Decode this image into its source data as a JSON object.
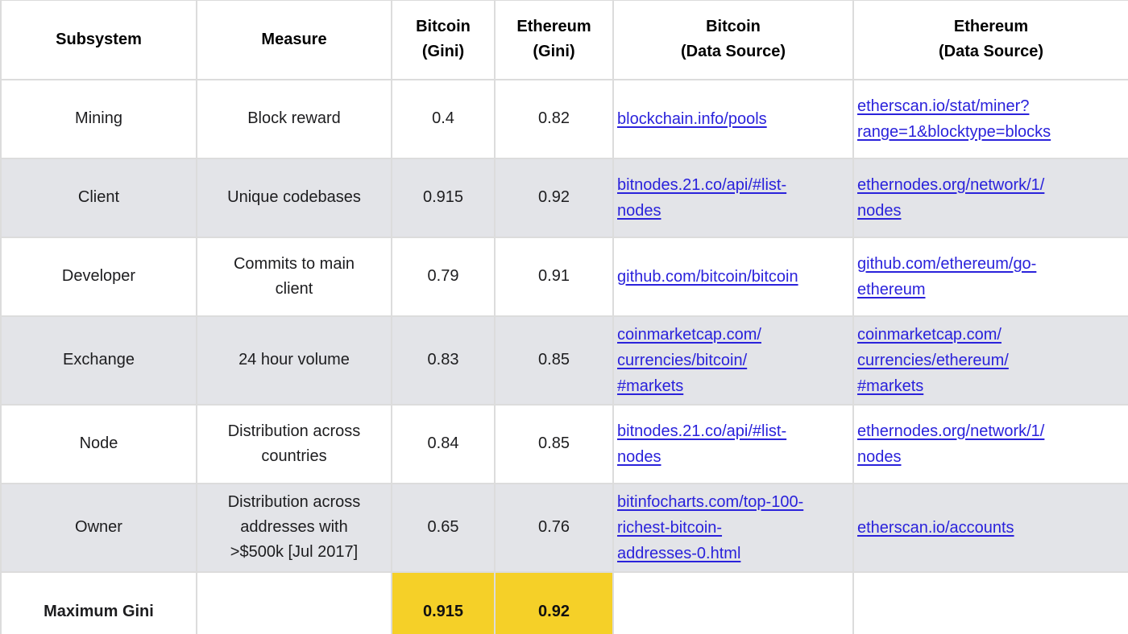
{
  "colors": {
    "highlight_yellow": "#F5D028",
    "row_shade_gray": "#E3E4E8",
    "link_blue": "#2A22DB",
    "border_gray": "#DCDCDC"
  },
  "table": {
    "headers": [
      {
        "line1": "Subsystem",
        "line2": ""
      },
      {
        "line1": "Measure",
        "line2": ""
      },
      {
        "line1": "Bitcoin",
        "line2": "(Gini)"
      },
      {
        "line1": "Ethereum",
        "line2": "(Gini)"
      },
      {
        "line1": "Bitcoin",
        "line2": "(Data Source)"
      },
      {
        "line1": "Ethereum",
        "line2": "(Data Source)"
      }
    ],
    "rows": [
      {
        "subsystem": "Mining",
        "measure": "Block reward",
        "bitcoin_gini": "0.4",
        "ethereum_gini": "0.82",
        "bitcoin_source_lines": [
          "blockchain.info/pools"
        ],
        "ethereum_source_lines": [
          "etherscan.io/stat/miner?",
          "range=1&blocktype=blocks"
        ],
        "shaded": false,
        "summary": false,
        "highlight": false
      },
      {
        "subsystem": "Client",
        "measure": "Unique codebases",
        "bitcoin_gini": "0.915",
        "ethereum_gini": "0.92",
        "bitcoin_source_lines": [
          "bitnodes.21.co/api/#list-",
          "nodes"
        ],
        "ethereum_source_lines": [
          "ethernodes.org/network/1/",
          "nodes"
        ],
        "shaded": true,
        "summary": false,
        "highlight": false
      },
      {
        "subsystem": "Developer",
        "measure": "Commits to main client",
        "bitcoin_gini": "0.79",
        "ethereum_gini": "0.91",
        "bitcoin_source_lines": [
          "github.com/bitcoin/bitcoin"
        ],
        "ethereum_source_lines": [
          "github.com/ethereum/go-",
          "ethereum"
        ],
        "shaded": false,
        "summary": false,
        "highlight": false
      },
      {
        "subsystem": "Exchange",
        "measure": "24 hour volume",
        "bitcoin_gini": "0.83",
        "ethereum_gini": "0.85",
        "bitcoin_source_lines": [
          "coinmarketcap.com/",
          "currencies/bitcoin/",
          "#markets"
        ],
        "ethereum_source_lines": [
          "coinmarketcap.com/",
          "currencies/ethereum/",
          "#markets"
        ],
        "shaded": true,
        "summary": false,
        "highlight": false
      },
      {
        "subsystem": "Node",
        "measure": "Distribution across countries",
        "bitcoin_gini": "0.84",
        "ethereum_gini": "0.85",
        "bitcoin_source_lines": [
          "bitnodes.21.co/api/#list-",
          "nodes"
        ],
        "ethereum_source_lines": [
          "ethernodes.org/network/1/",
          "nodes"
        ],
        "shaded": false,
        "summary": false,
        "highlight": false
      },
      {
        "subsystem": "Owner",
        "measure": "Distribution across addresses with >$500k [Jul 2017]",
        "bitcoin_gini": "0.65",
        "ethereum_gini": "0.76",
        "bitcoin_source_lines": [
          "bitinfocharts.com/top-100-",
          "richest-bitcoin-",
          "addresses-0.html"
        ],
        "ethereum_source_lines": [
          "etherscan.io/accounts"
        ],
        "shaded": true,
        "summary": false,
        "highlight": false
      },
      {
        "subsystem": "Maximum Gini",
        "measure": "",
        "bitcoin_gini": "0.915",
        "ethereum_gini": "0.92",
        "bitcoin_source_lines": [],
        "ethereum_source_lines": [],
        "shaded": false,
        "summary": true,
        "highlight": true
      }
    ]
  },
  "chart_data": {
    "type": "table",
    "title": "Gini coefficients of Bitcoin and Ethereum subsystems with data sources",
    "columns": [
      "Subsystem",
      "Measure",
      "Bitcoin (Gini)",
      "Ethereum (Gini)",
      "Bitcoin (Data Source)",
      "Ethereum (Data Source)"
    ],
    "rows": [
      [
        "Mining",
        "Block reward",
        0.4,
        0.82,
        "blockchain.info/pools",
        "etherscan.io/stat/miner?range=1&blocktype=blocks"
      ],
      [
        "Client",
        "Unique codebases",
        0.915,
        0.92,
        "bitnodes.21.co/api/#list-nodes",
        "ethernodes.org/network/1/nodes"
      ],
      [
        "Developer",
        "Commits to main client",
        0.79,
        0.91,
        "github.com/bitcoin/bitcoin",
        "github.com/ethereum/go-ethereum"
      ],
      [
        "Exchange",
        "24 hour volume",
        0.83,
        0.85,
        "coinmarketcap.com/currencies/bitcoin/#markets",
        "coinmarketcap.com/currencies/ethereum/#markets"
      ],
      [
        "Node",
        "Distribution across countries",
        0.84,
        0.85,
        "bitnodes.21.co/api/#list-nodes",
        "ethernodes.org/network/1/nodes"
      ],
      [
        "Owner",
        "Distribution across addresses with >$500k [Jul 2017]",
        0.65,
        0.76,
        "bitinfocharts.com/top-100-richest-bitcoin-addresses-0.html",
        "etherscan.io/accounts"
      ],
      [
        "Maximum Gini",
        "",
        0.915,
        0.92,
        "",
        ""
      ]
    ],
    "highlight": {
      "row": "Maximum Gini",
      "cells": [
        "Bitcoin (Gini)",
        "Ethereum (Gini)"
      ],
      "color": "#F5D028"
    },
    "layout": {
      "striped_rows": [
        "Client",
        "Exchange",
        "Owner"
      ],
      "stripe_color": "#E3E4E8",
      "header_bold": true
    }
  }
}
